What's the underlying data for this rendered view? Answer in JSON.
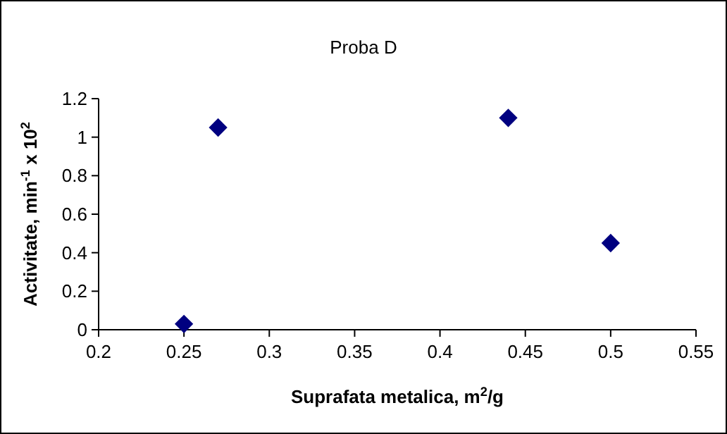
{
  "chart_data": {
    "type": "scatter",
    "title": "Proba D",
    "xlabel": "Suprafata metalica, m$^{2}$/g",
    "ylabel": "Activitate, min$^{-1}$ x 10$^{2}$",
    "x": [
      0.25,
      0.27,
      0.44,
      0.5
    ],
    "series": [
      {
        "color": "#000080",
        "values": [
          0.03,
          1.05,
          1.1,
          0.45
        ]
      }
    ],
    "xlim": [
      0.2,
      0.55
    ],
    "xticks": [
      0.2,
      0.25,
      0.3,
      0.35,
      0.4,
      0.45,
      0.5,
      0.55
    ],
    "ylim": [
      0,
      1.2
    ],
    "yticks": [
      0,
      0.2,
      0.4,
      0.6,
      0.8,
      1,
      1.2
    ],
    "marker": "diamond"
  }
}
